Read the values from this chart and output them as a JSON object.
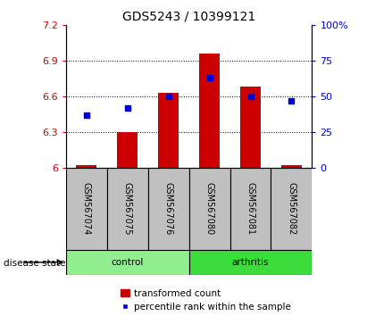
{
  "title": "GDS5243 / 10399121",
  "samples": [
    "GSM567074",
    "GSM567075",
    "GSM567076",
    "GSM567080",
    "GSM567081",
    "GSM567082"
  ],
  "transformed_counts": [
    6.02,
    6.3,
    6.63,
    6.96,
    6.68,
    6.02
  ],
  "percentile_ranks": [
    37,
    42,
    50,
    63,
    50,
    47
  ],
  "bar_bottom": 6.0,
  "ylim_left": [
    6.0,
    7.2
  ],
  "ylim_right": [
    0,
    100
  ],
  "yticks_left": [
    6.0,
    6.3,
    6.6,
    6.9,
    7.2
  ],
  "yticks_right": [
    0,
    25,
    50,
    75,
    100
  ],
  "ytick_labels_left": [
    "6",
    "6.3",
    "6.6",
    "6.9",
    "7.2"
  ],
  "ytick_labels_right": [
    "0",
    "25",
    "50",
    "75",
    "100%"
  ],
  "grid_yticks": [
    6.3,
    6.6,
    6.9
  ],
  "groups": [
    {
      "label": "control",
      "indices": [
        0,
        1,
        2
      ],
      "color": "#90EE90"
    },
    {
      "label": "arthritis",
      "indices": [
        3,
        4,
        5
      ],
      "color": "#3DDC3D"
    }
  ],
  "bar_color": "#CC0000",
  "dot_color": "#0000CC",
  "bar_width": 0.5,
  "background_color": "#ffffff",
  "sample_box_color": "#C0C0C0",
  "disease_label": "disease state",
  "legend_items": [
    "transformed count",
    "percentile rank within the sample"
  ],
  "title_fontsize": 10,
  "tick_fontsize": 8,
  "sample_fontsize": 7,
  "label_fontsize": 7.5,
  "legend_fontsize": 7.5
}
